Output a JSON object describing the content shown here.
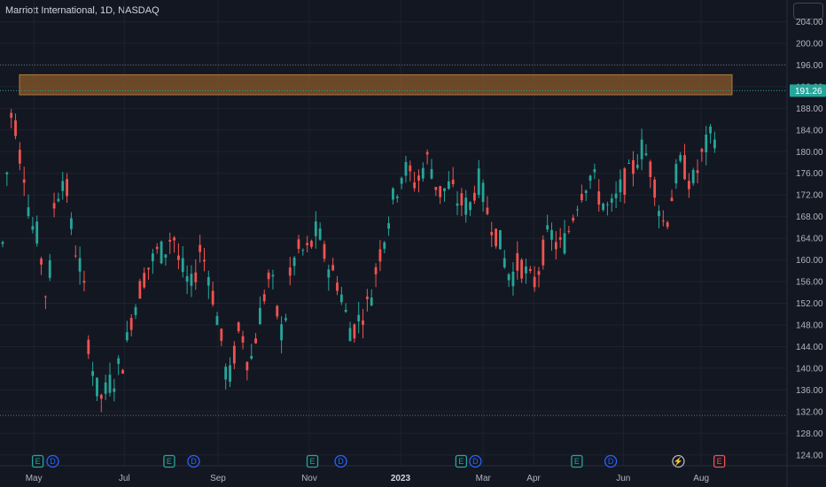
{
  "header": {
    "title": "Marriott International, 1D, NASDAQ"
  },
  "colors": {
    "up": "#26a69a",
    "down": "#ef5350",
    "zone": "#8a5a2b",
    "grid": "#1e222d",
    "bg": "#131722"
  },
  "chart_data": {
    "type": "candlestick",
    "title": "Marriott International, 1D, NASDAQ",
    "ylim": [
      122,
      208
    ],
    "y_ticks": [
      124,
      128,
      132,
      136,
      140,
      144,
      148,
      152,
      156,
      160,
      164,
      168,
      172,
      176,
      180,
      184,
      188,
      192,
      196,
      200,
      204
    ],
    "y_tick_labels": [
      "124.00",
      "128.00",
      "132.00",
      "136.00",
      "140.00",
      "144.00",
      "148.00",
      "152.00",
      "156.00",
      "160.00",
      "164.00",
      "168.00",
      "172.00",
      "176.00",
      "180.00",
      "184.00",
      "188.00",
      "192.00",
      "196.00",
      "200.00",
      "204.00"
    ],
    "x_labels": [
      {
        "label": "May",
        "pos": 0.043,
        "bold": false
      },
      {
        "label": "Jul",
        "pos": 0.158,
        "bold": false
      },
      {
        "label": "Sep",
        "pos": 0.277,
        "bold": false
      },
      {
        "label": "Nov",
        "pos": 0.393,
        "bold": false
      },
      {
        "label": "2023",
        "pos": 0.509,
        "bold": true
      },
      {
        "label": "Mar",
        "pos": 0.614,
        "bold": false
      },
      {
        "label": "Apr",
        "pos": 0.678,
        "bold": false
      },
      {
        "label": "Jun",
        "pos": 0.792,
        "bold": false
      },
      {
        "label": "Aug",
        "pos": 0.891,
        "bold": false
      }
    ],
    "current_price": {
      "value": 191.26,
      "label": "191.26"
    },
    "horizontal_lines": [
      196.0,
      131.3
    ],
    "zone": {
      "from": 190.5,
      "to": 194.2
    },
    "events": [
      {
        "type": "E",
        "pos": 0.048,
        "color": "#26a69a"
      },
      {
        "type": "D",
        "pos": 0.067,
        "color": "#2962ff"
      },
      {
        "type": "E",
        "pos": 0.215,
        "color": "#26a69a"
      },
      {
        "type": "D",
        "pos": 0.246,
        "color": "#2962ff"
      },
      {
        "type": "E",
        "pos": 0.397,
        "color": "#26a69a"
      },
      {
        "type": "D",
        "pos": 0.433,
        "color": "#2962ff"
      },
      {
        "type": "E",
        "pos": 0.586,
        "color": "#26a69a"
      },
      {
        "type": "D",
        "pos": 0.604,
        "color": "#2962ff"
      },
      {
        "type": "E",
        "pos": 0.733,
        "color": "#26a69a"
      },
      {
        "type": "D",
        "pos": 0.776,
        "color": "#2962ff"
      },
      {
        "type": "⚡",
        "pos": 0.862,
        "color": "#b2b5be"
      },
      {
        "type": "E",
        "pos": 0.914,
        "color": "#ef5350"
      }
    ],
    "path": [
      [
        0,
        163
      ],
      [
        0.8,
        174
      ],
      [
        2.5,
        192
      ],
      [
        3.5,
        178
      ],
      [
        4.5,
        181
      ],
      [
        5.5,
        172
      ],
      [
        7,
        166
      ],
      [
        8.5,
        164
      ],
      [
        9.5,
        156
      ],
      [
        10.5,
        152
      ],
      [
        12,
        170
      ],
      [
        13.5,
        174
      ],
      [
        14.5,
        176
      ],
      [
        16,
        166
      ],
      [
        17.5,
        160
      ],
      [
        18.5,
        158
      ],
      [
        19.5,
        150
      ],
      [
        20,
        145
      ],
      [
        21,
        140
      ],
      [
        22,
        136
      ],
      [
        23.5,
        134
      ],
      [
        24.5,
        137
      ],
      [
        26,
        138
      ],
      [
        27,
        140
      ],
      [
        28.5,
        142
      ],
      [
        29.5,
        148
      ],
      [
        31,
        152
      ],
      [
        32.5,
        156
      ],
      [
        33.5,
        158
      ],
      [
        35,
        160
      ],
      [
        36.5,
        162
      ],
      [
        37.5,
        161
      ],
      [
        38.5,
        163
      ],
      [
        39.5,
        165
      ],
      [
        40.5,
        163
      ],
      [
        41,
        160
      ],
      [
        42,
        158
      ],
      [
        43,
        156
      ],
      [
        44,
        155
      ],
      [
        45,
        158
      ],
      [
        46,
        162
      ],
      [
        47.5,
        159
      ],
      [
        48.5,
        156
      ],
      [
        49.5,
        151
      ],
      [
        50.5,
        148
      ],
      [
        51.5,
        142
      ],
      [
        52.5,
        137
      ],
      [
        53.5,
        140
      ],
      [
        54.5,
        145
      ],
      [
        55.5,
        148
      ],
      [
        56.5,
        144
      ],
      [
        57.5,
        140
      ],
      [
        58.5,
        144
      ],
      [
        59.5,
        148
      ],
      [
        60.5,
        152
      ],
      [
        61.5,
        155
      ],
      [
        62.5,
        158
      ],
      [
        63.5,
        152
      ],
      [
        64.5,
        148
      ],
      [
        65.5,
        146
      ],
      [
        66.5,
        154
      ],
      [
        67.5,
        159
      ],
      [
        68.5,
        161
      ],
      [
        69.5,
        162
      ],
      [
        70.5,
        161
      ],
      [
        71.5,
        162
      ],
      [
        72.5,
        164
      ],
      [
        73.5,
        166
      ],
      [
        74.5,
        162
      ],
      [
        75.5,
        160
      ],
      [
        76.5,
        158
      ],
      [
        77.5,
        157
      ],
      [
        78.5,
        155
      ],
      [
        79.5,
        152
      ],
      [
        80.5,
        148
      ],
      [
        81.5,
        147
      ],
      [
        82.5,
        148
      ],
      [
        83.5,
        150
      ],
      [
        84.5,
        151
      ],
      [
        85.5,
        152
      ],
      [
        86.5,
        156
      ],
      [
        87.5,
        160
      ],
      [
        88.5,
        163
      ],
      [
        89.5,
        166
      ],
      [
        90.5,
        170
      ],
      [
        91.5,
        172
      ],
      [
        92.5,
        175
      ],
      [
        93.5,
        177
      ],
      [
        94.5,
        176
      ],
      [
        95.5,
        175
      ],
      [
        96.5,
        174
      ],
      [
        97.5,
        176
      ],
      [
        98.5,
        178
      ],
      [
        99.5,
        179
      ],
      [
        100.5,
        175
      ],
      [
        101.5,
        173
      ],
      [
        102.5,
        172
      ],
      [
        103.5,
        174
      ],
      [
        104.5,
        173
      ],
      [
        105.5,
        172
      ],
      [
        106.5,
        170
      ],
      [
        107.5,
        171
      ],
      [
        108.5,
        169
      ],
      [
        109.5,
        171
      ],
      [
        110.5,
        175
      ],
      [
        111.5,
        174
      ],
      [
        112.5,
        170
      ],
      [
        113.5,
        168
      ],
      [
        114.5,
        166
      ],
      [
        115.5,
        164
      ],
      [
        116.5,
        162
      ],
      [
        117.5,
        158
      ],
      [
        118.5,
        157
      ],
      [
        119.5,
        158
      ],
      [
        120.5,
        160
      ],
      [
        121.5,
        158
      ],
      [
        122.5,
        157
      ],
      [
        123.5,
        155
      ],
      [
        124.5,
        157
      ],
      [
        125.5,
        160
      ],
      [
        126.5,
        163
      ],
      [
        127.5,
        165
      ],
      [
        128.5,
        164
      ],
      [
        129.5,
        162
      ],
      [
        130.5,
        163
      ],
      [
        131.5,
        164
      ],
      [
        132.5,
        167
      ],
      [
        133.5,
        170
      ],
      [
        134.5,
        172
      ],
      [
        135.5,
        174
      ],
      [
        136.5,
        175
      ],
      [
        137.5,
        176
      ],
      [
        138.5,
        173
      ],
      [
        139.5,
        171
      ],
      [
        140.5,
        170
      ],
      [
        141.5,
        169
      ],
      [
        142.5,
        170
      ],
      [
        143.5,
        172
      ],
      [
        144.5,
        174
      ],
      [
        145.5,
        175
      ],
      [
        146.5,
        176
      ],
      [
        147.5,
        178
      ],
      [
        148.5,
        180
      ],
      [
        149.5,
        181
      ],
      [
        150.5,
        178
      ],
      [
        151.5,
        176
      ],
      [
        152.5,
        172
      ],
      [
        153.5,
        168
      ],
      [
        154.5,
        166
      ],
      [
        155.5,
        170
      ],
      [
        156.5,
        174
      ],
      [
        157.5,
        177
      ],
      [
        158.5,
        178
      ],
      [
        159.5,
        176
      ],
      [
        160.5,
        174
      ],
      [
        161.5,
        175
      ],
      [
        162.5,
        178
      ],
      [
        163.5,
        180
      ],
      [
        164.5,
        182
      ],
      [
        165.5,
        183
      ]
    ]
  }
}
